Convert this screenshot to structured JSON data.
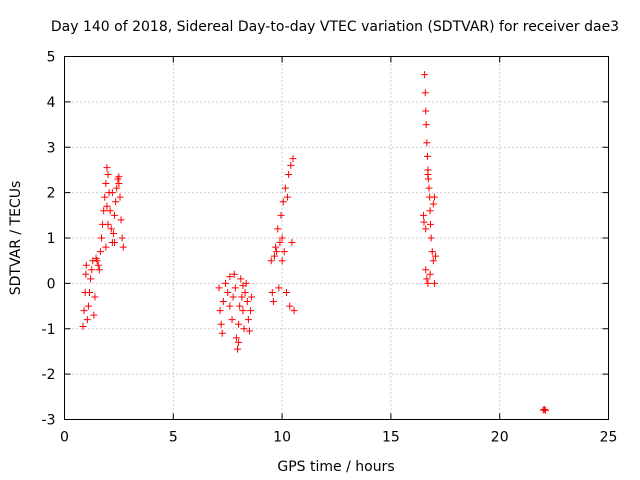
{
  "chart_data": {
    "type": "scatter",
    "title": "Day 140 of 2018, Sidereal Day-to-day VTEC variation (SDTVAR) for receiver dae3",
    "xlabel": "GPS time / hours",
    "ylabel": "SDTVAR / TECUs",
    "xlim": [
      0,
      25
    ],
    "ylim": [
      -3,
      5
    ],
    "xticks": [
      "0",
      "5",
      "10",
      "15",
      "20",
      "25"
    ],
    "yticks": [
      "-3",
      "-2",
      "-1",
      "0",
      "1",
      "2",
      "3",
      "4",
      "5"
    ],
    "grid": true,
    "marker": "+",
    "color": "#ff0000",
    "series": [
      {
        "name": "SDTVAR",
        "points": [
          [
            0.85,
            -0.95
          ],
          [
            0.9,
            -0.6
          ],
          [
            0.95,
            -0.2
          ],
          [
            0.98,
            0.2
          ],
          [
            1.0,
            0.4
          ],
          [
            1.05,
            -0.8
          ],
          [
            1.1,
            -0.5
          ],
          [
            1.15,
            -0.2
          ],
          [
            1.2,
            0.1
          ],
          [
            1.25,
            0.3
          ],
          [
            1.3,
            0.5
          ],
          [
            1.35,
            -0.7
          ],
          [
            1.4,
            -0.3
          ],
          [
            1.45,
            0.55
          ],
          [
            1.5,
            0.5
          ],
          [
            1.55,
            0.4
          ],
          [
            1.6,
            0.3
          ],
          [
            1.65,
            0.7
          ],
          [
            1.7,
            1.0
          ],
          [
            1.75,
            1.3
          ],
          [
            1.8,
            1.6
          ],
          [
            1.85,
            1.9
          ],
          [
            1.9,
            2.2
          ],
          [
            1.95,
            2.55
          ],
          [
            2.0,
            2.4
          ],
          [
            2.05,
            2.0
          ],
          [
            2.1,
            1.6
          ],
          [
            2.15,
            1.2
          ],
          [
            2.2,
            0.9
          ],
          [
            2.25,
            1.1
          ],
          [
            2.3,
            1.5
          ],
          [
            2.35,
            1.8
          ],
          [
            2.4,
            2.1
          ],
          [
            2.45,
            2.3
          ],
          [
            2.5,
            2.2
          ],
          [
            2.55,
            1.9
          ],
          [
            2.6,
            1.4
          ],
          [
            2.65,
            1.0
          ],
          [
            2.7,
            0.8
          ],
          [
            2.3,
            0.9
          ],
          [
            2.0,
            1.3
          ],
          [
            1.9,
            0.8
          ],
          [
            2.5,
            2.35
          ],
          [
            2.2,
            2.0
          ],
          [
            1.95,
            1.7
          ],
          [
            7.1,
            -0.1
          ],
          [
            7.15,
            -0.6
          ],
          [
            7.2,
            -0.9
          ],
          [
            7.25,
            -1.1
          ],
          [
            7.3,
            -0.4
          ],
          [
            7.4,
            0.0
          ],
          [
            7.5,
            -0.2
          ],
          [
            7.6,
            -0.5
          ],
          [
            7.7,
            -0.8
          ],
          [
            7.75,
            -0.3
          ],
          [
            7.8,
            0.2
          ],
          [
            7.85,
            -0.1
          ],
          [
            7.9,
            -1.2
          ],
          [
            7.95,
            -1.45
          ],
          [
            8.0,
            -0.9
          ],
          [
            8.05,
            -0.5
          ],
          [
            8.1,
            0.1
          ],
          [
            8.15,
            -0.3
          ],
          [
            8.2,
            -0.6
          ],
          [
            8.25,
            -1.0
          ],
          [
            8.3,
            -0.2
          ],
          [
            8.35,
            0.0
          ],
          [
            8.4,
            -0.4
          ],
          [
            8.45,
            -0.8
          ],
          [
            8.5,
            -1.05
          ],
          [
            8.55,
            -0.6
          ],
          [
            8.6,
            -0.3
          ],
          [
            7.6,
            0.15
          ],
          [
            8.0,
            -1.3
          ],
          [
            8.2,
            -0.05
          ],
          [
            9.5,
            0.5
          ],
          [
            9.55,
            -0.2
          ],
          [
            9.6,
            -0.4
          ],
          [
            9.65,
            0.6
          ],
          [
            9.7,
            0.8
          ],
          [
            9.8,
            1.2
          ],
          [
            9.85,
            -0.1
          ],
          [
            9.9,
            0.9
          ],
          [
            9.95,
            1.5
          ],
          [
            10.0,
            1.0
          ],
          [
            10.05,
            1.8
          ],
          [
            10.1,
            0.7
          ],
          [
            10.15,
            2.1
          ],
          [
            10.2,
            -0.2
          ],
          [
            10.25,
            1.9
          ],
          [
            10.3,
            2.4
          ],
          [
            10.35,
            -0.5
          ],
          [
            10.4,
            2.6
          ],
          [
            10.45,
            0.9
          ],
          [
            10.5,
            2.75
          ],
          [
            10.55,
            -0.6
          ],
          [
            10.0,
            0.5
          ],
          [
            9.75,
            0.7
          ],
          [
            16.55,
            4.6
          ],
          [
            16.58,
            4.2
          ],
          [
            16.6,
            3.8
          ],
          [
            16.62,
            3.5
          ],
          [
            16.65,
            3.1
          ],
          [
            16.68,
            2.8
          ],
          [
            16.7,
            2.5
          ],
          [
            16.72,
            2.3
          ],
          [
            16.75,
            2.1
          ],
          [
            16.78,
            1.9
          ],
          [
            16.8,
            1.6
          ],
          [
            16.82,
            1.3
          ],
          [
            16.5,
            1.5
          ],
          [
            16.52,
            1.35
          ],
          [
            16.6,
            1.2
          ],
          [
            16.85,
            1.0
          ],
          [
            16.9,
            0.7
          ],
          [
            16.95,
            0.5
          ],
          [
            16.6,
            0.3
          ],
          [
            16.65,
            0.1
          ],
          [
            16.7,
            0.0
          ],
          [
            16.8,
            0.2
          ],
          [
            17.0,
            0.0
          ],
          [
            17.05,
            0.6
          ],
          [
            16.95,
            1.75
          ],
          [
            17.0,
            1.9
          ],
          [
            16.7,
            2.4
          ],
          [
            22.05,
            -2.78
          ],
          [
            22.1,
            -2.8
          ],
          [
            22.0,
            -2.79
          ]
        ]
      }
    ]
  }
}
